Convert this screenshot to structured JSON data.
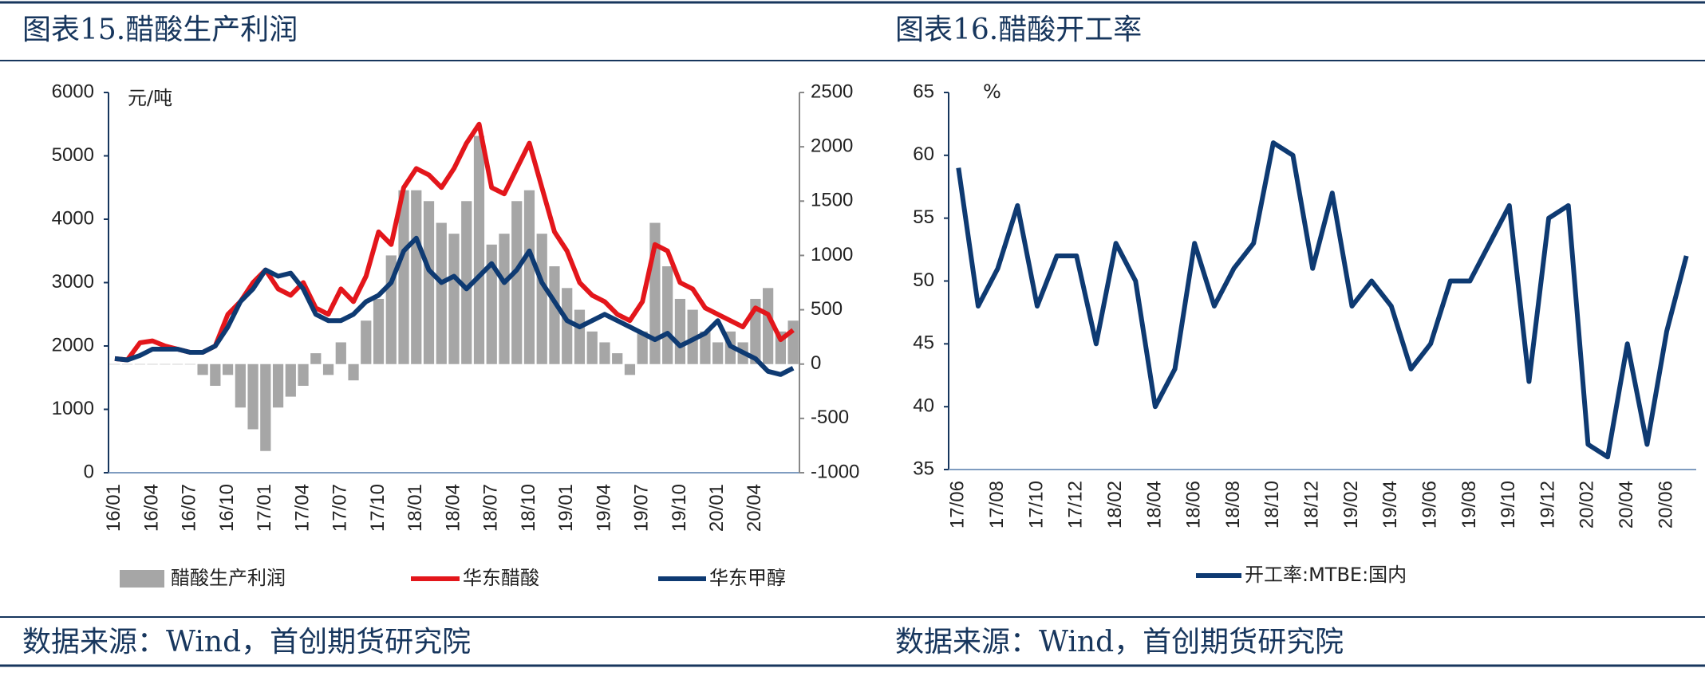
{
  "panels": [
    {
      "title": "图表15.醋酸生产利润",
      "source": "数据来源：Wind，首创期货研究院"
    },
    {
      "title": "图表16.醋酸开工率",
      "source": "数据来源：Wind，首创期货研究院"
    }
  ],
  "chart_data": [
    {
      "type": "combo",
      "y_label": "元/吨",
      "categories": [
        "16/01",
        null,
        null,
        "16/04",
        null,
        null,
        "16/07",
        null,
        null,
        "16/10",
        null,
        null,
        "17/01",
        null,
        null,
        "17/04",
        null,
        null,
        "17/07",
        null,
        null,
        "17/10",
        null,
        null,
        "18/01",
        null,
        null,
        "18/04",
        null,
        null,
        "18/07",
        null,
        null,
        "18/10",
        null,
        null,
        "19/01",
        null,
        null,
        "19/04",
        null,
        null,
        "19/07",
        null,
        null,
        "19/10",
        null,
        null,
        "20/01",
        null,
        null,
        "20/04",
        null,
        null,
        null
      ],
      "ylim": [
        0,
        6000
      ],
      "yticks": [
        0,
        1000,
        2000,
        3000,
        4000,
        5000,
        6000
      ],
      "y2lim": [
        -1000,
        2500
      ],
      "y2ticks": [
        -1000,
        -500,
        0,
        500,
        1000,
        1500,
        2000,
        2500
      ],
      "series": [
        {
          "name": "醋酸生产利润",
          "type": "bar",
          "axis": "y2",
          "color": "#a6a6a6",
          "values": [
            0,
            0,
            0,
            0,
            0,
            0,
            0,
            -100,
            -200,
            -100,
            -400,
            -600,
            -800,
            -400,
            -300,
            -200,
            100,
            -100,
            200,
            -150,
            400,
            600,
            1000,
            1600,
            1600,
            1500,
            1300,
            1200,
            1500,
            2100,
            1100,
            1200,
            1500,
            1600,
            1200,
            900,
            700,
            500,
            300,
            200,
            100,
            -100,
            300,
            1300,
            900,
            600,
            500,
            300,
            200,
            300,
            200,
            600,
            700,
            300,
            400
          ]
        },
        {
          "name": "华东醋酸",
          "type": "line",
          "color": "#e3161b",
          "values": [
            1800,
            1780,
            2050,
            2080,
            2000,
            1950,
            1900,
            1900,
            2000,
            2500,
            2700,
            3000,
            3200,
            2900,
            2800,
            3000,
            2600,
            2500,
            2900,
            2700,
            3100,
            3800,
            3600,
            4500,
            4800,
            4700,
            4500,
            4800,
            5200,
            5500,
            4500,
            4400,
            4800,
            5200,
            4500,
            3800,
            3500,
            3000,
            2800,
            2700,
            2500,
            2400,
            2700,
            3600,
            3500,
            3000,
            2900,
            2600,
            2500,
            2400,
            2300,
            2600,
            2500,
            2100,
            2250
          ]
        },
        {
          "name": "华东甲醇",
          "type": "line",
          "color": "#0e3a72",
          "values": [
            1800,
            1780,
            1850,
            1950,
            1950,
            1950,
            1900,
            1900,
            2000,
            2300,
            2700,
            2900,
            3200,
            3100,
            3150,
            2900,
            2500,
            2400,
            2400,
            2500,
            2700,
            2800,
            3000,
            3500,
            3700,
            3200,
            3000,
            3100,
            2900,
            3100,
            3300,
            3000,
            3200,
            3500,
            3000,
            2700,
            2400,
            2300,
            2400,
            2500,
            2400,
            2300,
            2200,
            2100,
            2200,
            2000,
            2100,
            2200,
            2400,
            2000,
            1900,
            1800,
            1600,
            1550,
            1650
          ]
        }
      ]
    },
    {
      "type": "line",
      "y_label": "%",
      "categories": [
        "17/06",
        null,
        "17/08",
        null,
        "17/10",
        null,
        "17/12",
        null,
        "18/02",
        null,
        "18/04",
        null,
        "18/06",
        null,
        "18/08",
        null,
        "18/10",
        null,
        "18/12",
        null,
        "19/02",
        null,
        "19/04",
        null,
        "19/06",
        null,
        "19/08",
        null,
        "19/10",
        null,
        "19/12",
        null,
        "20/02",
        null,
        "20/04",
        null,
        "20/06",
        null
      ],
      "ylim": [
        35,
        65
      ],
      "yticks": [
        35,
        40,
        45,
        50,
        55,
        60,
        65
      ],
      "series": [
        {
          "name": "开工率:MTBE:国内",
          "type": "line",
          "color": "#0e3a72",
          "values": [
            59,
            48,
            51,
            56,
            48,
            52,
            52,
            45,
            53,
            50,
            40,
            43,
            53,
            48,
            51,
            53,
            61,
            60,
            51,
            57,
            48,
            50,
            48,
            43,
            45,
            50,
            50,
            53,
            56,
            42,
            55,
            56,
            37,
            36,
            45,
            37,
            46,
            52
          ]
        }
      ]
    }
  ]
}
